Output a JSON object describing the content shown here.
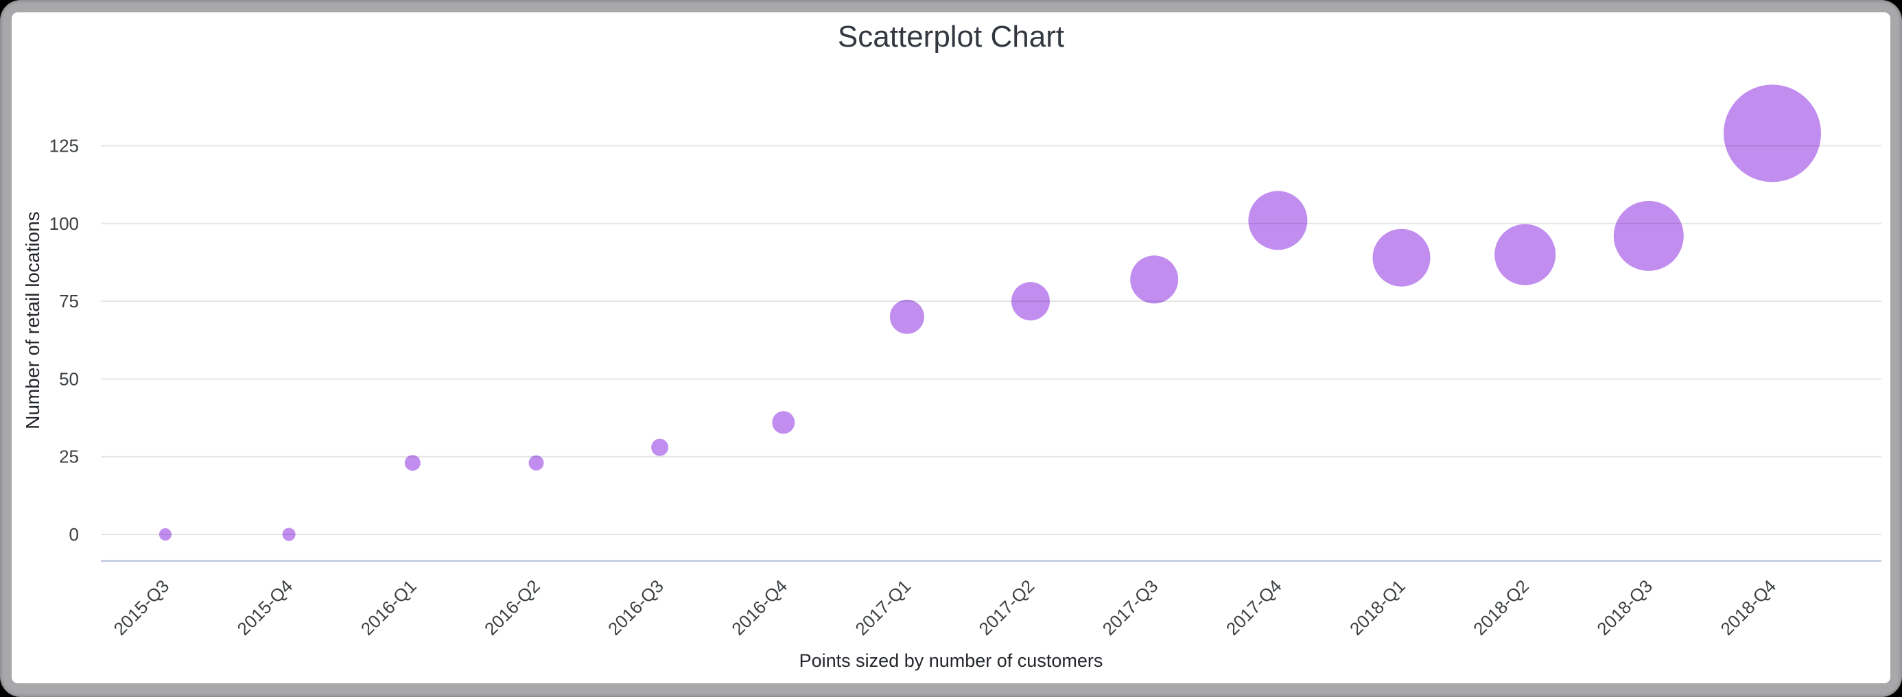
{
  "window": {
    "background_color": "#000000",
    "frame_color": "#a8a8ab",
    "card_color": "#ffffff"
  },
  "chart_data": {
    "type": "scatter",
    "title": "Scatterplot Chart",
    "ylabel": "Number of retail locations",
    "xlabel": "Points sized by number of customers",
    "legend": "none",
    "grid": true,
    "categories": [
      "2015-Q3",
      "2015-Q4",
      "2016-Q1",
      "2016-Q2",
      "2016-Q3",
      "2016-Q4",
      "2017-Q1",
      "2017-Q2",
      "2017-Q3",
      "2017-Q4",
      "2018-Q1",
      "2018-Q2",
      "2018-Q3",
      "2018-Q4"
    ],
    "values": [
      0,
      0,
      23,
      23,
      28,
      36,
      70,
      75,
      82,
      101,
      89,
      90,
      96,
      129
    ],
    "point_radius_px": [
      9,
      9.5,
      11.5,
      11,
      12.5,
      16.5,
      25,
      28,
      35,
      43,
      42,
      44.5,
      51,
      71
    ],
    "size_encoding": "number of customers",
    "y_ticks": [
      0,
      25,
      50,
      75,
      100,
      125
    ],
    "ylim": [
      0,
      140
    ],
    "colors": {
      "point": "#c18ef0",
      "grid": "#e6e6e6",
      "axis_line": "#c7d1e3",
      "tick_text": "#3c4043",
      "title_text": "#333740"
    }
  }
}
